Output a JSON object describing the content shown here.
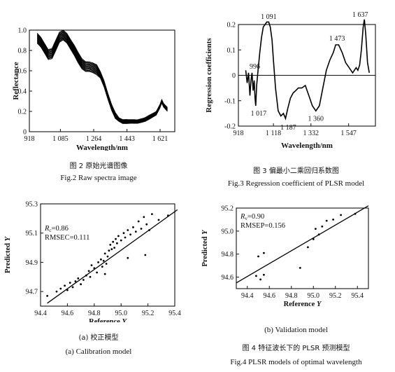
{
  "captions": {
    "fig2_cn": "图 2 原始光谱图像",
    "fig2_en": "Fig.2 Raw spectra image",
    "fig3_cn": "图 3 偏最小二乘回归系数图",
    "fig3_en": "Fig.3 Regression coefficient of PLSR model",
    "fig4a_cn": "(a) 校正模型",
    "fig4a_en": "(a) Calibration model",
    "fig4b_en": "(b) Validation model",
    "fig4b_cn": "(b) 验证模型",
    "fig4_cn": "图 4 特征波长下的 PLSR 预测模型",
    "fig4_en": "Fig.4 PLSR models of optimal wavelength"
  },
  "chart_data": [
    {
      "id": "raw_spectra",
      "type": "line",
      "xlabel": "Wavelength/nm",
      "ylabel": "Reflectance",
      "xlim": [
        918,
        1700
      ],
      "ylim": [
        0,
        1.0
      ],
      "x_ticks": [
        918,
        1085,
        1264,
        1443,
        1621
      ],
      "x_tick_labels": [
        "918",
        "1 085",
        "1 264",
        "1 443",
        "1 621"
      ],
      "y_ticks": [
        0,
        0.2,
        0.4,
        0.6,
        0.8,
        1.0
      ],
      "y_tick_labels": [
        "0",
        "0.2",
        "0.4",
        "0.6",
        "0.8",
        "1.0"
      ],
      "base_curve": {
        "x": [
          960,
          980,
          1000,
          1020,
          1040,
          1060,
          1080,
          1100,
          1120,
          1140,
          1160,
          1180,
          1200,
          1220,
          1240,
          1260,
          1280,
          1300,
          1320,
          1340,
          1360,
          1380,
          1400,
          1420,
          1440,
          1460,
          1480,
          1500,
          1520,
          1540,
          1560,
          1580,
          1600,
          1620,
          1630,
          1640,
          1660
        ],
        "y": [
          0.92,
          0.88,
          0.82,
          0.76,
          0.77,
          0.85,
          0.93,
          0.95,
          0.92,
          0.86,
          0.8,
          0.73,
          0.67,
          0.64,
          0.64,
          0.63,
          0.61,
          0.56,
          0.47,
          0.35,
          0.24,
          0.16,
          0.12,
          0.1,
          0.1,
          0.1,
          0.1,
          0.1,
          0.11,
          0.12,
          0.14,
          0.16,
          0.18,
          0.25,
          0.3,
          0.26,
          0.22
        ]
      },
      "series_count": 36
    },
    {
      "id": "regression_coefficients",
      "type": "line",
      "xlabel": "Wavelength/nm",
      "ylabel": "Regression coefficients",
      "xlim": [
        918,
        1700
      ],
      "ylim": [
        -0.2,
        0.2
      ],
      "x_ticks": [
        918,
        1118,
        1332,
        1547
      ],
      "x_tick_labels": [
        "918",
        "1 118",
        "1 332",
        "1 547"
      ],
      "y_ticks": [
        -0.2,
        -0.1,
        0,
        0.1,
        0.2
      ],
      "y_tick_labels": [
        "-0.2",
        "-0.1",
        "0",
        "0.1",
        "0.2"
      ],
      "x": [
        960,
        968,
        976,
        984,
        990,
        996,
        1002,
        1008,
        1013,
        1017,
        1022,
        1030,
        1040,
        1050,
        1060,
        1070,
        1080,
        1091,
        1100,
        1110,
        1118,
        1130,
        1145,
        1160,
        1175,
        1187,
        1200,
        1215,
        1230,
        1245,
        1260,
        1280,
        1300,
        1320,
        1340,
        1360,
        1380,
        1400,
        1420,
        1440,
        1460,
        1473,
        1490,
        1510,
        1530,
        1550,
        1570,
        1590,
        1600,
        1610,
        1620,
        1630,
        1637,
        1645,
        1655,
        1665
      ],
      "y": [
        0.02,
        -0.03,
        0.01,
        -0.08,
        -0.02,
        0.01,
        -0.06,
        -0.02,
        -0.09,
        -0.12,
        -0.04,
        0.02,
        0.09,
        0.15,
        0.19,
        0.2,
        0.21,
        0.21,
        0.19,
        0.14,
        0.06,
        -0.05,
        -0.14,
        -0.16,
        -0.15,
        -0.17,
        -0.13,
        -0.09,
        -0.07,
        -0.06,
        -0.05,
        -0.05,
        -0.04,
        -0.08,
        -0.12,
        -0.14,
        -0.12,
        -0.05,
        0.02,
        0.06,
        0.09,
        0.12,
        0.12,
        0.09,
        0.05,
        0.03,
        0.01,
        0.03,
        0.02,
        0.04,
        0.1,
        0.19,
        0.22,
        0.16,
        0.05,
        0.01
      ],
      "annotations": [
        {
          "label": "1 091",
          "x": 1091,
          "y": 0.205
        },
        {
          "label": "996",
          "x": 996,
          "y": 0.01
        },
        {
          "label": "1 017",
          "x": 1017,
          "y": -0.12
        },
        {
          "label": "1 187",
          "x": 1187,
          "y": -0.17
        },
        {
          "label": "1 360",
          "x": 1360,
          "y": -0.14
        },
        {
          "label": "1 473",
          "x": 1473,
          "y": 0.12
        },
        {
          "label": "1 637",
          "x": 1637,
          "y": 0.22
        }
      ]
    },
    {
      "id": "calibration_model",
      "type": "scatter",
      "xlabel": "Reference",
      "xlabel_var": "Y",
      "ylabel": "Predicted",
      "ylabel_var": "Y",
      "xlim": [
        94.4,
        95.4
      ],
      "ylim": [
        94.6,
        95.3
      ],
      "x_ticks": [
        94.4,
        94.6,
        94.8,
        95.0,
        95.2,
        95.4
      ],
      "x_tick_labels": [
        "94.4",
        "94.6",
        "94.8",
        "95.0",
        "95.2",
        "95.4"
      ],
      "y_ticks": [
        94.7,
        94.9,
        95.1,
        95.3
      ],
      "y_tick_labels": [
        "94.7",
        "94.9",
        "95.1",
        "95.3"
      ],
      "stats": [
        "R",
        "c",
        "=0.86",
        "RMSEC=0.111"
      ],
      "fit_line": [
        [
          94.45,
          94.62
        ],
        [
          95.42,
          95.26
        ]
      ],
      "points": [
        [
          94.45,
          94.67
        ],
        [
          94.52,
          94.7
        ],
        [
          94.55,
          94.72
        ],
        [
          94.58,
          94.74
        ],
        [
          94.6,
          94.71
        ],
        [
          94.62,
          94.76
        ],
        [
          94.64,
          94.73
        ],
        [
          94.66,
          94.77
        ],
        [
          94.68,
          94.79
        ],
        [
          94.7,
          94.75
        ],
        [
          94.72,
          94.78
        ],
        [
          94.74,
          94.81
        ],
        [
          94.76,
          94.84
        ],
        [
          94.77,
          94.8
        ],
        [
          94.78,
          94.88
        ],
        [
          94.8,
          94.86
        ],
        [
          94.82,
          94.83
        ],
        [
          94.83,
          94.9
        ],
        [
          94.85,
          94.92
        ],
        [
          94.86,
          94.87
        ],
        [
          94.87,
          94.91
        ],
        [
          94.88,
          94.96
        ],
        [
          94.89,
          94.89
        ],
        [
          94.9,
          94.94
        ],
        [
          94.91,
          94.98
        ],
        [
          94.92,
          95.02
        ],
        [
          94.93,
          94.99
        ],
        [
          94.94,
          95.04
        ],
        [
          94.95,
          95.0
        ],
        [
          94.96,
          95.06
        ],
        [
          94.97,
          95.03
        ],
        [
          94.98,
          95.08
        ],
        [
          95.0,
          95.05
        ],
        [
          95.02,
          95.1
        ],
        [
          95.03,
          95.07
        ],
        [
          95.05,
          95.12
        ],
        [
          95.07,
          95.09
        ],
        [
          95.09,
          95.14
        ],
        [
          95.11,
          95.11
        ],
        [
          95.13,
          95.18
        ],
        [
          95.15,
          95.13
        ],
        [
          95.17,
          95.21
        ],
        [
          95.19,
          95.16
        ],
        [
          95.21,
          95.12
        ],
        [
          95.23,
          95.23
        ],
        [
          95.28,
          95.19
        ],
        [
          95.35,
          95.22
        ],
        [
          94.88,
          94.82
        ],
        [
          95.05,
          94.93
        ],
        [
          95.18,
          94.95
        ]
      ]
    },
    {
      "id": "validation_model",
      "type": "scatter",
      "xlabel": "Reference",
      "xlabel_var": "Y",
      "ylabel": "Predicted",
      "ylabel_var": "Y",
      "xlim": [
        94.3,
        95.5
      ],
      "ylim": [
        94.5,
        95.2
      ],
      "x_ticks": [
        94.4,
        94.6,
        94.8,
        95.0,
        95.2,
        95.4
      ],
      "x_tick_labels": [
        "94.4",
        "94.6",
        "94.8",
        "95.0",
        "95.2",
        "95.4"
      ],
      "y_ticks": [
        94.6,
        94.8,
        95.0,
        95.2
      ],
      "y_tick_labels": [
        "94.6",
        "94.8",
        "95.0",
        "95.2"
      ],
      "stats": [
        "R",
        "v",
        "=0.90",
        "RMSEP=0.156"
      ],
      "fit_line": [
        [
          94.3,
          94.55
        ],
        [
          95.5,
          95.22
        ]
      ],
      "points": [
        [
          94.48,
          94.61
        ],
        [
          94.52,
          94.58
        ],
        [
          94.55,
          94.62
        ],
        [
          94.5,
          94.78
        ],
        [
          94.55,
          94.81
        ],
        [
          94.88,
          94.68
        ],
        [
          94.95,
          94.86
        ],
        [
          95.0,
          94.93
        ],
        [
          95.02,
          95.02
        ],
        [
          95.05,
          94.97
        ],
        [
          95.08,
          95.04
        ],
        [
          95.12,
          95.09
        ],
        [
          95.18,
          95.1
        ],
        [
          95.25,
          95.14
        ],
        [
          95.38,
          95.15
        ]
      ]
    }
  ]
}
